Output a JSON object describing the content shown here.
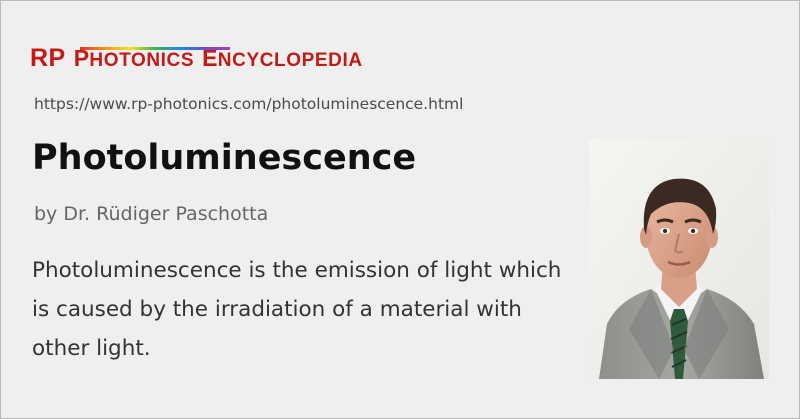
{
  "logo": {
    "rp": "RP",
    "photonics_first": "P",
    "photonics_rest": "HOTONICS",
    "encyclopedia_first": "E",
    "encyclopedia_rest": "NCYCLOPEDIA",
    "brand_color": "#c41a16"
  },
  "url": "https://www.rp-photonics.com/photoluminescence.html",
  "title": "Photoluminescence",
  "byline": "by Dr. Rüdiger Paschotta",
  "description": "Photoluminescence is the emission of light which is caused by the irradiation of a material with other light.",
  "author_photo": {
    "icon": "author-portrait"
  },
  "colors": {
    "background": "#efefef",
    "title": "#111111",
    "byline": "#666666",
    "text": "#333333"
  }
}
